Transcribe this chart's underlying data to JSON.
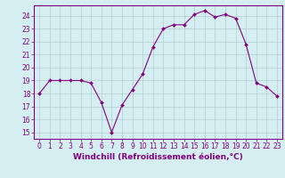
{
  "x": [
    0,
    1,
    2,
    3,
    4,
    5,
    6,
    7,
    8,
    9,
    10,
    11,
    12,
    13,
    14,
    15,
    16,
    17,
    18,
    19,
    20,
    21,
    22,
    23
  ],
  "y": [
    18,
    19,
    19,
    19,
    19,
    18.8,
    17.3,
    15.0,
    17.1,
    18.3,
    19.5,
    21.6,
    23.0,
    23.3,
    23.3,
    24.1,
    24.4,
    23.9,
    24.1,
    23.8,
    21.8,
    18.8,
    18.5,
    17.8
  ],
  "line_color": "#800080",
  "marker": "D",
  "marker_size": 2.0,
  "bg_color": "#d5eef2",
  "grid_color": "#b0cece",
  "xlabel": "Windchill (Refroidissement éolien,°C)",
  "xlabel_fontsize": 6.5,
  "ylabel_ticks": [
    15,
    16,
    17,
    18,
    19,
    20,
    21,
    22,
    23,
    24
  ],
  "xtick_labels": [
    "0",
    "1",
    "2",
    "3",
    "4",
    "5",
    "6",
    "7",
    "8",
    "9",
    "10",
    "11",
    "12",
    "13",
    "14",
    "15",
    "16",
    "17",
    "18",
    "19",
    "20",
    "21",
    "22",
    "23"
  ],
  "ylim": [
    14.5,
    24.8
  ],
  "xlim": [
    -0.5,
    23.5
  ],
  "tick_fontsize": 5.5
}
